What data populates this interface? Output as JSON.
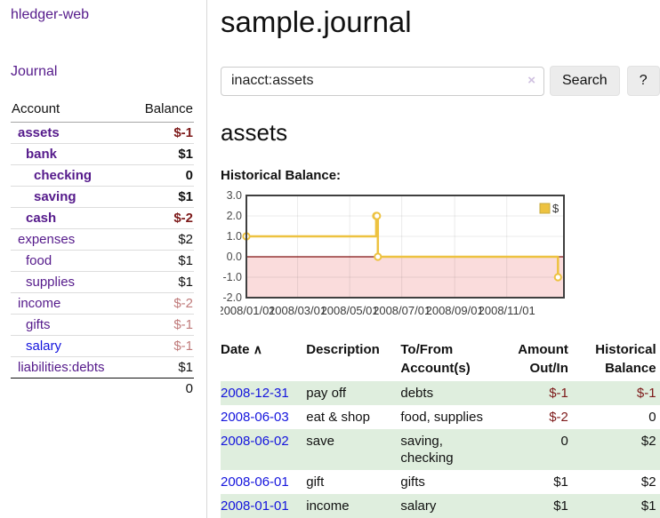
{
  "app": {
    "title": "hledger-web",
    "nav_journal": "Journal"
  },
  "sidebar": {
    "table_headers": {
      "account": "Account",
      "balance": "Balance"
    },
    "accounts": [
      {
        "name": "assets",
        "level": 1,
        "bold": true,
        "balance": "$-1",
        "balance_style": "neg-strong",
        "link": "purple"
      },
      {
        "name": "bank",
        "level": 2,
        "bold": true,
        "balance": "$1",
        "balance_style": "pos",
        "link": "purple"
      },
      {
        "name": "checking",
        "level": 3,
        "bold": true,
        "balance": "0",
        "balance_style": "pos",
        "link": "purple"
      },
      {
        "name": "saving",
        "level": 3,
        "bold": true,
        "balance": "$1",
        "balance_style": "pos",
        "link": "purple"
      },
      {
        "name": "cash",
        "level": 2,
        "bold": true,
        "balance": "$-2",
        "balance_style": "neg-strong",
        "link": "purple"
      },
      {
        "name": "expenses",
        "level": 1,
        "bold": false,
        "balance": "$2",
        "balance_style": "pos",
        "link": "purple"
      },
      {
        "name": "food",
        "level": 2,
        "bold": false,
        "balance": "$1",
        "balance_style": "pos",
        "link": "purple"
      },
      {
        "name": "supplies",
        "level": 2,
        "bold": false,
        "balance": "$1",
        "balance_style": "pos",
        "link": "purple"
      },
      {
        "name": "income",
        "level": 1,
        "bold": false,
        "balance": "$-2",
        "balance_style": "neg-soft",
        "link": "purple"
      },
      {
        "name": "gifts",
        "level": 2,
        "bold": false,
        "balance": "$-1",
        "balance_style": "neg-soft",
        "link": "purple"
      },
      {
        "name": "salary",
        "level": 2,
        "bold": false,
        "balance": "$-1",
        "balance_style": "neg-soft",
        "link": "blue"
      },
      {
        "name": "liabilities:debts",
        "level": 1,
        "bold": false,
        "balance": "$1",
        "balance_style": "pos",
        "link": "purple"
      }
    ],
    "total": "0"
  },
  "header": {
    "title": "sample.journal"
  },
  "search": {
    "value": "inacct:assets",
    "clear_icon": "×",
    "button": "Search",
    "help_button": "?"
  },
  "page": {
    "heading": "assets"
  },
  "chart_data": {
    "type": "line",
    "style": "steps-with-markers",
    "title": "Historical Balance:",
    "series": [
      {
        "name": "$",
        "color": "#edc240",
        "points": [
          [
            "2008-01-01",
            1
          ],
          [
            "2008-06-01",
            2
          ],
          [
            "2008-06-02",
            2
          ],
          [
            "2008-06-03",
            0
          ],
          [
            "2008-12-31",
            -1
          ]
        ]
      }
    ],
    "xticks": [
      "2008/01/01",
      "2008/03/01",
      "2008/05/01",
      "2008/07/01",
      "2008/09/01",
      "2008/11/01"
    ],
    "yticks": [
      3.0,
      2.0,
      1.0,
      0.0,
      -1.0,
      -2.0
    ],
    "ylim": [
      -2,
      3
    ],
    "xlim": [
      "2008-01-01",
      "2009-01-07"
    ],
    "grid": true,
    "legend_position": "top-right",
    "negative_region_color": "#fadcdc",
    "zero_line_color": "#7f1010",
    "border_color": "#3f3f3f"
  },
  "register": {
    "headers": {
      "date": "Date",
      "sort_icon": "∧",
      "description": "Description",
      "account_line1": "To/From",
      "account_line2": "Account(s)",
      "amount_line1": "Amount",
      "amount_line2": "Out/In",
      "balance_line1": "Historical",
      "balance_line2": "Balance"
    },
    "rows": [
      {
        "date": "2008-12-31",
        "description": "pay off",
        "accounts": "debts",
        "amount": "$-1",
        "amount_neg": true,
        "balance": "$-1",
        "balance_neg": true
      },
      {
        "date": "2008-06-03",
        "description": "eat & shop",
        "accounts": "food, supplies",
        "amount": "$-2",
        "amount_neg": true,
        "balance": "0",
        "balance_neg": false
      },
      {
        "date": "2008-06-02",
        "description": "save",
        "accounts": "saving, checking",
        "amount": "0",
        "amount_neg": false,
        "balance": "$2",
        "balance_neg": false
      },
      {
        "date": "2008-06-01",
        "description": "gift",
        "accounts": "gifts",
        "amount": "$1",
        "amount_neg": false,
        "balance": "$2",
        "balance_neg": false
      },
      {
        "date": "2008-01-01",
        "description": "income",
        "accounts": "salary",
        "amount": "$1",
        "amount_neg": false,
        "balance": "$1",
        "balance_neg": false
      }
    ]
  },
  "colors": {
    "link_purple": "#551a8b",
    "link_blue": "#1414dd",
    "negative_strong": "#7d1a1a",
    "negative_soft": "#c07b7b",
    "row_stripe_green": "#dfeede",
    "chart_gold": "#edc240",
    "chart_negative_region": "#fadcdc",
    "chart_zero_line": "#7f1010"
  }
}
